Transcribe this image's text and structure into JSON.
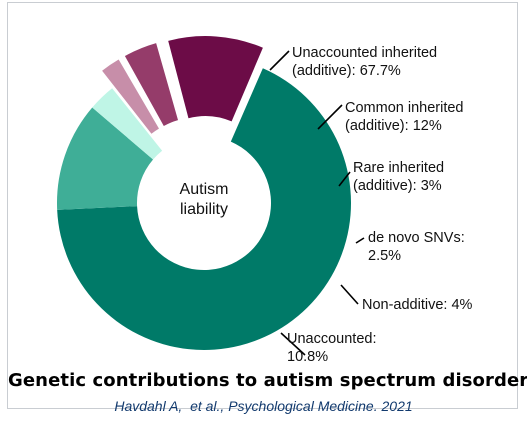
{
  "chart_data": {
    "type": "pie",
    "subtype": "donut-exploded",
    "center_label": [
      "Autism",
      "liability"
    ],
    "slices": [
      {
        "id": "unaccounted-inherited",
        "label_lines": [
          "Unaccounted inherited",
          "(additive): 67.7%"
        ],
        "value": 67.7,
        "color": "#007a68",
        "exploded": false
      },
      {
        "id": "common-inherited",
        "label_lines": [
          "Common inherited",
          "(additive): 12%"
        ],
        "value": 12,
        "color": "#3fae97",
        "exploded": false
      },
      {
        "id": "rare-inherited",
        "label_lines": [
          "Rare inherited",
          "(additive): 3%"
        ],
        "value": 3,
        "color": "#bff5e6",
        "exploded": false
      },
      {
        "id": "de-novo-snvs",
        "label_lines": [
          "de novo SNVs:",
          "2.5%"
        ],
        "value": 2.5,
        "color": "#c78ea9",
        "exploded": true
      },
      {
        "id": "non-additive",
        "label_lines": [
          "Non-additive: 4%"
        ],
        "value": 4,
        "color": "#953c6a",
        "exploded": true
      },
      {
        "id": "unaccounted",
        "label_lines": [
          "Unaccounted:",
          "10.8%"
        ],
        "value": 10.8,
        "color": "#6c0c47",
        "exploded": true
      }
    ]
  },
  "title": "Genetic contributions to autism spectrum disorder",
  "citation": "Havdahl A,  et al., Psychological Medicine. 2021"
}
